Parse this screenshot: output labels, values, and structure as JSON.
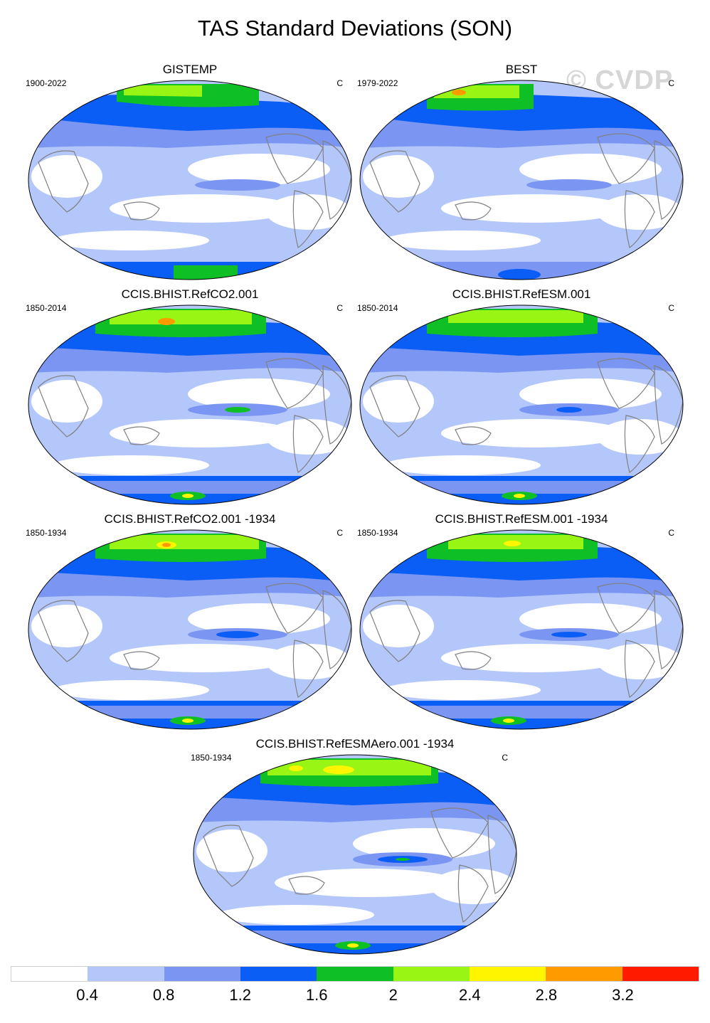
{
  "figure_title": "TAS Standard Deviations (SON)",
  "watermark": "© CVDP",
  "panels": [
    {
      "title": "GISTEMP",
      "period": "1900-2022",
      "unit": "C"
    },
    {
      "title": "BEST",
      "period": "1979-2022",
      "unit": "C"
    },
    {
      "title": "CCIS.BHIST.RefCO2.001",
      "period": "1850-2014",
      "unit": "C"
    },
    {
      "title": "CCIS.BHIST.RefESM.001",
      "period": "1850-2014",
      "unit": "C"
    },
    {
      "title": "CCIS.BHIST.RefCO2.001 -1934",
      "period": "1850-1934",
      "unit": "C"
    },
    {
      "title": "CCIS.BHIST.RefESM.001 -1934",
      "period": "1850-1934",
      "unit": "C"
    },
    {
      "title": "CCIS.BHIST.RefESMAero.001 -1934",
      "period": "1850-1934",
      "unit": "C"
    }
  ],
  "colorbar": {
    "colors": [
      "#ffffff",
      "#b4c7fa",
      "#7b96f2",
      "#0a5df5",
      "#0fbf26",
      "#98f514",
      "#fff500",
      "#ff9a00",
      "#ff1a00"
    ],
    "labels": [
      "0.4",
      "0.8",
      "1.2",
      "1.6",
      "2",
      "2.4",
      "2.8",
      "3.2"
    ]
  },
  "style_colors": {
    "land_outline": "#808080",
    "ocean_base": "#b4c7fa"
  }
}
